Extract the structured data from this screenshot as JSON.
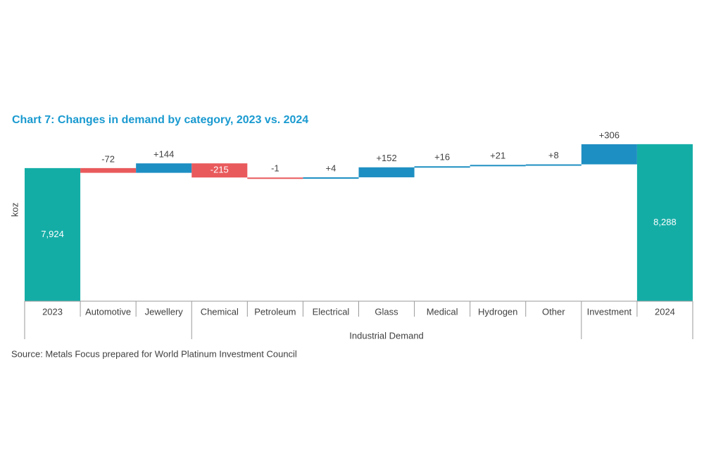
{
  "chart_data": {
    "type": "waterfall",
    "title": "Chart 7: Changes in demand by category, 2023 vs. 2024",
    "y_label": "koz",
    "source": "Source: Metals Focus prepared for World Platinum Investment Council",
    "categories": [
      "2023",
      "Automotive",
      "Jewellery",
      "Chemical",
      "Petroleum",
      "Electrical",
      "Glass",
      "Medical",
      "Hydrogen",
      "Other",
      "Investment",
      "2024"
    ],
    "values": [
      7924,
      -72,
      144,
      -215,
      -1,
      4,
      152,
      16,
      21,
      8,
      306,
      8288
    ],
    "value_labels": [
      "7,924",
      "-72",
      "+144",
      "-215",
      "-1",
      "+4",
      "+152",
      "+16",
      "+21",
      "+8",
      "+306",
      "8,288"
    ],
    "group": {
      "label": "Industrial Demand",
      "members": [
        "Chemical",
        "Petroleum",
        "Electrical",
        "Glass",
        "Medical",
        "Hydrogen",
        "Other"
      ]
    },
    "ylim": [
      5900,
      8400
    ],
    "colors": {
      "total": "#14ada6",
      "increase": "#1e8fc2",
      "decrease": "#e95a5c"
    }
  }
}
